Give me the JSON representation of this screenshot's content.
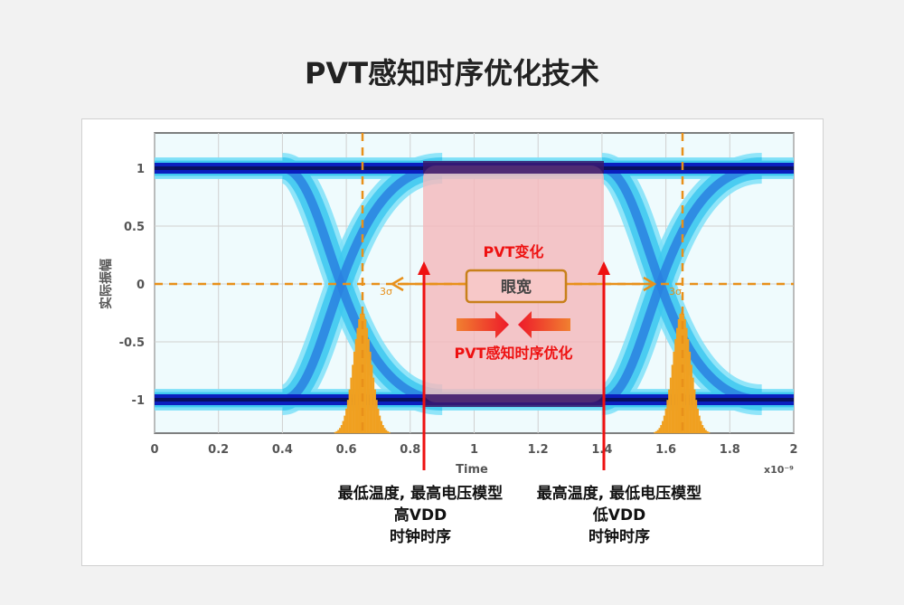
{
  "title": "PVT感知时序优化技术",
  "figure": {
    "ylabel": "实际振幅",
    "xlabel": "Time",
    "xscale": "x10⁻⁹",
    "xticks": [
      "0",
      "0.2",
      "0.4",
      "0.6",
      "0.8",
      "1",
      "1.2",
      "1.4",
      "1.6",
      "1.8",
      "2"
    ],
    "yticks": [
      "1",
      "0.5",
      "0",
      "-0.5",
      "-1"
    ],
    "annotations": {
      "pvt_change": "PVT变化",
      "eye_width": "眼宽",
      "pvt_opt": "PVT感知时序优化",
      "sigma_left": "3σ",
      "sigma_right": "3σ"
    },
    "colors": {
      "eye_band": "#0a1fbf",
      "eye_glow": "#3ec8f0",
      "window": "#f4b8bc",
      "histogram": "#f0a020",
      "arrows": "#ee1111",
      "marker": "#e8901a"
    }
  },
  "captions": {
    "left": [
      "最低温度, 最高电压模型",
      "高VDD",
      "时钟时序"
    ],
    "right": [
      "最高温度, 最低电压模型",
      "低VDD",
      "时钟时序"
    ]
  }
}
